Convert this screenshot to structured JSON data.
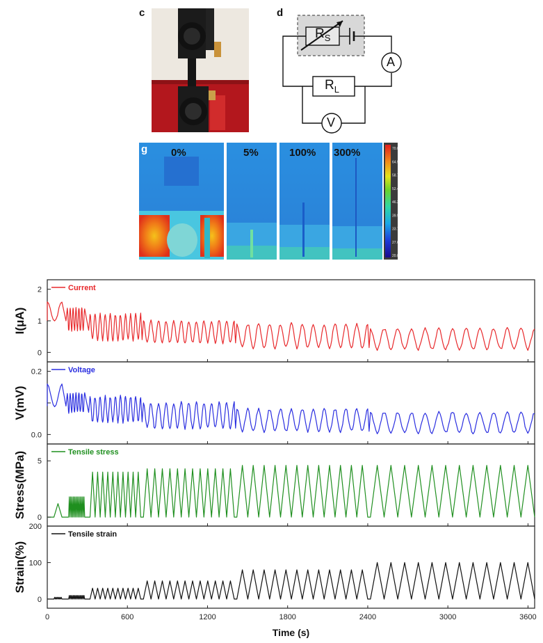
{
  "panels": {
    "c": "c",
    "d": "d",
    "g": "g"
  },
  "circuit": {
    "rs_main": "R",
    "rs_sub": "S",
    "rl_main": "R",
    "rl_sub": "L",
    "ammeter": "A",
    "voltmeter": "V"
  },
  "thermal": {
    "labels": [
      "0%",
      "5%",
      "100%",
      "300%"
    ],
    "colorbar_ticks": [
      "70.0",
      "64.9",
      "58.7",
      "52.4",
      "46.2",
      "39.9",
      "33.7",
      "27.6",
      "20.0"
    ]
  },
  "colors": {
    "current": "#e8282b",
    "voltage": "#2a2ee0",
    "stress": "#1f8f1f",
    "strain": "#111111"
  },
  "chart_data": {
    "type": "line",
    "xlabel": "Time (s)",
    "x_ticks": [
      0,
      600,
      1200,
      1800,
      2400,
      3000,
      3600
    ],
    "xlim": [
      0,
      3650
    ],
    "subplots": [
      {
        "name": "current",
        "ylabel": "I(μA)",
        "legend": "Current",
        "y_ticks": [
          0,
          1,
          2
        ],
        "ylim": [
          -0.3,
          2.3
        ],
        "segments": [
          {
            "start": 0,
            "end": 110,
            "cycles": 1,
            "peak": 1.6,
            "trough": 1.0
          },
          {
            "start": 150,
            "end": 280,
            "cycles": 6,
            "peak": 1.4,
            "trough": 0.7
          },
          {
            "start": 320,
            "end": 700,
            "cycles": 10,
            "peak": 1.2,
            "trough": 0.4
          },
          {
            "start": 720,
            "end": 1400,
            "cycles": 12,
            "peak": 1.0,
            "trough": 0.3
          },
          {
            "start": 1420,
            "end": 2400,
            "cycles": 12,
            "peak": 0.9,
            "trough": 0.15
          },
          {
            "start": 2420,
            "end": 3650,
            "cycles": 12,
            "peak": 0.75,
            "trough": 0.1
          }
        ]
      },
      {
        "name": "voltage",
        "ylabel": "V(mV)",
        "legend": "Voltage",
        "y_ticks": [
          0.0,
          0.1,
          0.2
        ],
        "y_tick_labels": [
          "0.0",
          "",
          "0.2"
        ],
        "ylim": [
          -0.03,
          0.23
        ],
        "segments": [
          {
            "start": 0,
            "end": 110,
            "cycles": 1,
            "peak": 0.16,
            "trough": 0.09
          },
          {
            "start": 150,
            "end": 280,
            "cycles": 6,
            "peak": 0.13,
            "trough": 0.07
          },
          {
            "start": 320,
            "end": 700,
            "cycles": 10,
            "peak": 0.12,
            "trough": 0.04
          },
          {
            "start": 720,
            "end": 1400,
            "cycles": 12,
            "peak": 0.1,
            "trough": 0.02
          },
          {
            "start": 1420,
            "end": 2400,
            "cycles": 12,
            "peak": 0.08,
            "trough": 0.01
          },
          {
            "start": 2420,
            "end": 3650,
            "cycles": 12,
            "peak": 0.07,
            "trough": 0.005
          }
        ]
      },
      {
        "name": "stress",
        "ylabel": "Stress(MPa)",
        "legend": "Tensile stress",
        "y_ticks": [
          0,
          5
        ],
        "ylim": [
          -0.8,
          6.5
        ],
        "segments": [
          {
            "start": 50,
            "end": 110,
            "cycles": 1,
            "peak": 1.2
          },
          {
            "start": 160,
            "end": 280,
            "cycles": 12,
            "peak": 1.8
          },
          {
            "start": 320,
            "end": 700,
            "cycles": 10,
            "peak": 4.0
          },
          {
            "start": 720,
            "end": 1400,
            "cycles": 12,
            "peak": 4.3
          },
          {
            "start": 1420,
            "end": 2400,
            "cycles": 12,
            "peak": 4.6
          },
          {
            "start": 2420,
            "end": 3650,
            "cycles": 12,
            "peak": 4.6
          }
        ]
      },
      {
        "name": "strain",
        "ylabel": "Strain(%)",
        "legend": "Tensile strain",
        "y_ticks": [
          0,
          100,
          200
        ],
        "ylim": [
          -25,
          200
        ],
        "segments": [
          {
            "start": 50,
            "end": 110,
            "cycles": 6,
            "peak": 5
          },
          {
            "start": 160,
            "end": 280,
            "cycles": 12,
            "peak": 10
          },
          {
            "start": 320,
            "end": 700,
            "cycles": 10,
            "peak": 30
          },
          {
            "start": 720,
            "end": 1400,
            "cycles": 12,
            "peak": 50
          },
          {
            "start": 1420,
            "end": 2400,
            "cycles": 12,
            "peak": 80
          },
          {
            "start": 2420,
            "end": 3650,
            "cycles": 12,
            "peak": 100
          }
        ]
      }
    ]
  }
}
